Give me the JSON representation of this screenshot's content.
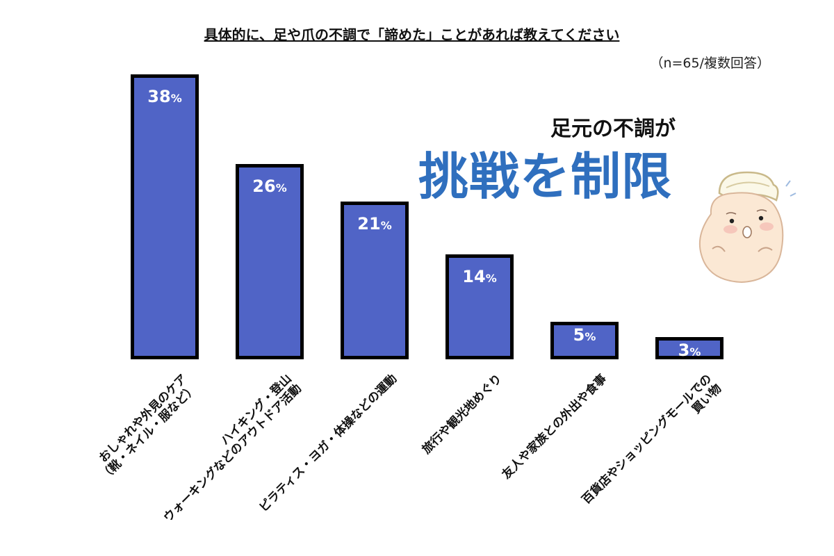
{
  "chart_data": {
    "type": "bar",
    "title": "具体的に、足や爪の不調で「諦めた」ことがあれば教えてください",
    "note": "（n=65/複数回答）",
    "categories": [
      "おしゃれや外見のケア\n（靴・ネイル・服など）",
      "ハイキング・登山\nウォーキングなどのアウトドア活動",
      "ピラティス・ヨガ・体操などの運動",
      "旅行や観光地めぐり",
      "友人や家族との外出や食事",
      "百貨店やショッピングモールでの\n買い物"
    ],
    "values": [
      38,
      26,
      21,
      14,
      5,
      3
    ],
    "unit": "%",
    "ylim": [
      0,
      38
    ],
    "grid": false,
    "colors": {
      "bar": "#5064c6",
      "bar_border": "#000000",
      "label": "#ffffff"
    }
  },
  "callout": {
    "line1": "足元の不調が",
    "line2": "挑戦を制限",
    "color": "#2f6fbe"
  },
  "illustration": "troubled-toe-character"
}
